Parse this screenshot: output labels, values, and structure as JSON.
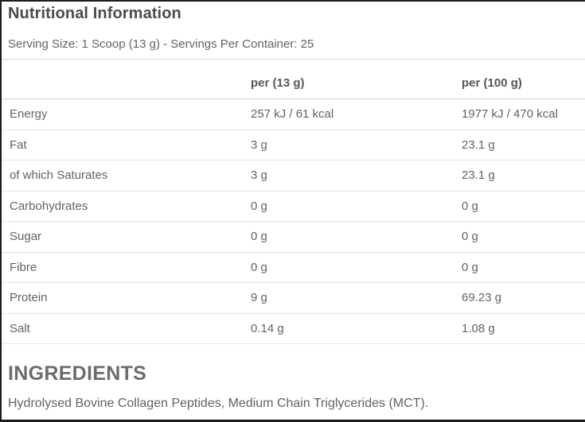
{
  "header": {
    "title": "Nutritional Information",
    "serving_info": "Serving Size: 1 Scoop (13 g) - Servings Per Container: 25"
  },
  "table": {
    "columns": {
      "nutrient": "",
      "per_serving": "per (13 g)",
      "per_100g": "per (100 g)"
    },
    "rows": [
      {
        "label": "Energy",
        "per_13g": "257 kJ / 61 kcal",
        "per_100g": "1977 kJ / 470 kcal"
      },
      {
        "label": "Fat",
        "per_13g": "3 g",
        "per_100g": "23.1 g"
      },
      {
        "label": "of which Saturates",
        "per_13g": "3 g",
        "per_100g": "23.1 g"
      },
      {
        "label": "Carbohydrates",
        "per_13g": "0 g",
        "per_100g": "0 g"
      },
      {
        "label": "Sugar",
        "per_13g": "0 g",
        "per_100g": "0 g"
      },
      {
        "label": "Fibre",
        "per_13g": "0 g",
        "per_100g": "0 g"
      },
      {
        "label": "Protein",
        "per_13g": "9 g",
        "per_100g": "69.23 g"
      },
      {
        "label": "Salt",
        "per_13g": "0.14 g",
        "per_100g": "1.08 g"
      }
    ]
  },
  "ingredients": {
    "heading": "INGREDIENTS",
    "text": "Hydrolysed Bovine Collagen Peptides, Medium Chain Triglycerides (MCT)."
  },
  "colors": {
    "border_dark": "#1c1c1c",
    "title_text": "#4b4c4f",
    "body_text": "#5f6368",
    "row_separator": "#e3e3e3",
    "header_separator": "#cccccc"
  }
}
